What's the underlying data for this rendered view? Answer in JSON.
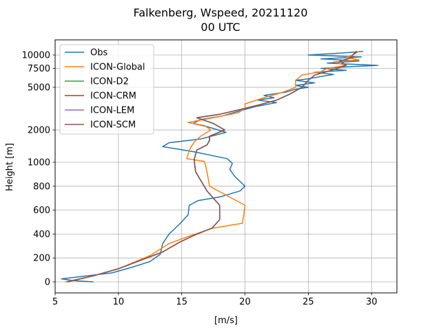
{
  "chart_data": {
    "type": "line",
    "title": "Falkenberg, Wspeed, 20211120",
    "subtitle": "00 UTC",
    "xlabel": "[m/s]",
    "ylabel": "Height [m]",
    "xlim": [
      5,
      32
    ],
    "xticks": [
      5,
      10,
      15,
      20,
      25,
      30
    ],
    "yticks": [
      {
        "label": "0",
        "value": 0
      },
      {
        "label": "200",
        "value": 200
      },
      {
        "label": "400",
        "value": 400
      },
      {
        "label": "600",
        "value": 600
      },
      {
        "label": "800",
        "value": 800
      },
      {
        "label": "1000",
        "value": 1000
      },
      {
        "label": "2000",
        "value": 2000
      },
      {
        "label": "5000",
        "value": 5000
      },
      {
        "label": "7500",
        "value": 7500
      },
      {
        "label": "10000",
        "value": 10000
      }
    ],
    "y_scale": "piecewise: linear 0-1000 m, logarithmic above 1000 m",
    "grid": true,
    "legend_position": "upper-left",
    "series": [
      {
        "name": "Obs",
        "color": "#1f77b4",
        "points": [
          [
            8.0,
            0
          ],
          [
            6.5,
            10
          ],
          [
            5.5,
            25
          ],
          [
            7.5,
            50
          ],
          [
            9.5,
            75
          ],
          [
            11.0,
            120
          ],
          [
            12.5,
            170
          ],
          [
            13.3,
            230
          ],
          [
            13.5,
            320
          ],
          [
            14.0,
            400
          ],
          [
            14.8,
            480
          ],
          [
            15.5,
            560
          ],
          [
            15.6,
            640
          ],
          [
            16.3,
            680
          ],
          [
            18.0,
            710
          ],
          [
            19.6,
            760
          ],
          [
            20.0,
            800
          ],
          [
            19.2,
            880
          ],
          [
            18.8,
            940
          ],
          [
            19.0,
            990
          ],
          [
            18.6,
            1080
          ],
          [
            16.0,
            1250
          ],
          [
            13.5,
            1400
          ],
          [
            14.0,
            1520
          ],
          [
            16.5,
            1650
          ],
          [
            18.5,
            1900
          ],
          [
            17.0,
            2150
          ],
          [
            15.9,
            2300
          ],
          [
            16.5,
            2500
          ],
          [
            18.2,
            2700
          ],
          [
            19.5,
            3000
          ],
          [
            20.8,
            3300
          ],
          [
            22.5,
            3600
          ],
          [
            21.0,
            3800
          ],
          [
            22.3,
            4000
          ],
          [
            21.5,
            4200
          ],
          [
            23.2,
            4500
          ],
          [
            24.0,
            4800
          ],
          [
            25.0,
            5000
          ],
          [
            24.0,
            5200
          ],
          [
            25.5,
            5500
          ],
          [
            24.0,
            5800
          ],
          [
            25.0,
            6000
          ],
          [
            26.0,
            6300
          ],
          [
            27.0,
            6600
          ],
          [
            25.5,
            6900
          ],
          [
            28.0,
            7200
          ],
          [
            26.0,
            7500
          ],
          [
            28.5,
            7800
          ],
          [
            30.5,
            8000
          ],
          [
            26.5,
            8400
          ],
          [
            29.0,
            8800
          ],
          [
            26.0,
            9200
          ],
          [
            29.2,
            9600
          ],
          [
            25.0,
            10000
          ],
          [
            27.5,
            10400
          ],
          [
            29.3,
            10800
          ]
        ]
      },
      {
        "name": "ICON-Global",
        "color": "#ff7f0e",
        "points": [
          [
            5.8,
            0
          ],
          [
            8.0,
            50
          ],
          [
            10.0,
            110
          ],
          [
            12.5,
            220
          ],
          [
            14.0,
            320
          ],
          [
            15.5,
            380
          ],
          [
            17.5,
            450
          ],
          [
            19.8,
            490
          ],
          [
            20.0,
            640
          ],
          [
            17.2,
            800
          ],
          [
            17.0,
            920
          ],
          [
            16.8,
            1020
          ],
          [
            15.4,
            1080
          ],
          [
            15.6,
            1300
          ],
          [
            16.0,
            1550
          ],
          [
            16.5,
            1750
          ],
          [
            17.3,
            2000
          ],
          [
            16.8,
            2200
          ],
          [
            15.5,
            2350
          ],
          [
            17.5,
            2600
          ],
          [
            19.5,
            2900
          ],
          [
            20.0,
            3200
          ],
          [
            20.0,
            3500
          ],
          [
            21.5,
            4000
          ],
          [
            23.0,
            4500
          ],
          [
            24.0,
            5000
          ],
          [
            24.0,
            5800
          ],
          [
            24.5,
            6500
          ],
          [
            26.0,
            7000
          ],
          [
            26.5,
            7500
          ],
          [
            28.0,
            8000
          ],
          [
            27.0,
            8600
          ],
          [
            29.0,
            9000
          ],
          [
            28.0,
            9500
          ],
          [
            28.5,
            10000
          ],
          [
            29.0,
            10800
          ]
        ]
      },
      {
        "name": "ICON-D2",
        "color": "#2ca02c",
        "points": [
          [
            6.0,
            0
          ],
          [
            8.0,
            50
          ],
          [
            10.0,
            110
          ],
          [
            12.0,
            190
          ],
          [
            13.5,
            250
          ],
          [
            14.8,
            330
          ],
          [
            16.0,
            390
          ],
          [
            17.4,
            450
          ],
          [
            18.0,
            520
          ],
          [
            18.0,
            640
          ],
          [
            17.0,
            760
          ],
          [
            16.1,
            920
          ],
          [
            16.0,
            1000
          ],
          [
            16.0,
            1080
          ],
          [
            16.2,
            1300
          ],
          [
            17.0,
            1450
          ],
          [
            17.2,
            1600
          ],
          [
            17.2,
            1750
          ],
          [
            18.4,
            2000
          ],
          [
            17.5,
            2300
          ],
          [
            16.2,
            2600
          ],
          [
            18.0,
            2800
          ],
          [
            19.6,
            3100
          ],
          [
            21.0,
            3400
          ],
          [
            22.5,
            3800
          ],
          [
            23.5,
            4300
          ],
          [
            24.5,
            5000
          ],
          [
            25.0,
            5800
          ],
          [
            25.5,
            6500
          ],
          [
            27.0,
            7300
          ],
          [
            28.0,
            8000
          ],
          [
            27.5,
            8800
          ],
          [
            28.5,
            9500
          ],
          [
            28.5,
            10000
          ],
          [
            28.8,
            10800
          ]
        ]
      },
      {
        "name": "ICON-CRM",
        "color": "#d62728",
        "points": [
          [
            6.0,
            0
          ],
          [
            8.0,
            50
          ],
          [
            10.0,
            110
          ],
          [
            12.0,
            190
          ],
          [
            13.5,
            250
          ],
          [
            14.8,
            330
          ],
          [
            16.0,
            390
          ],
          [
            17.4,
            450
          ],
          [
            18.0,
            520
          ],
          [
            18.0,
            640
          ],
          [
            17.0,
            760
          ],
          [
            16.1,
            920
          ],
          [
            16.0,
            1000
          ],
          [
            16.0,
            1080
          ],
          [
            16.2,
            1300
          ],
          [
            17.0,
            1450
          ],
          [
            17.2,
            1600
          ],
          [
            17.2,
            1750
          ],
          [
            18.4,
            2000
          ],
          [
            17.5,
            2300
          ],
          [
            16.2,
            2600
          ],
          [
            18.0,
            2800
          ],
          [
            19.6,
            3100
          ],
          [
            21.0,
            3400
          ],
          [
            22.5,
            3800
          ],
          [
            23.5,
            4300
          ],
          [
            24.5,
            5000
          ],
          [
            25.0,
            5800
          ],
          [
            25.5,
            6500
          ],
          [
            27.0,
            7300
          ],
          [
            28.0,
            8000
          ],
          [
            27.5,
            8800
          ],
          [
            28.5,
            9500
          ],
          [
            28.5,
            10000
          ],
          [
            28.8,
            10800
          ]
        ]
      },
      {
        "name": "ICON-LEM",
        "color": "#9467bd",
        "points": [
          [
            6.0,
            0
          ],
          [
            8.0,
            50
          ],
          [
            10.0,
            110
          ],
          [
            12.0,
            190
          ],
          [
            13.5,
            250
          ],
          [
            14.8,
            330
          ],
          [
            16.0,
            390
          ],
          [
            17.4,
            450
          ],
          [
            18.0,
            520
          ],
          [
            18.0,
            640
          ],
          [
            17.0,
            760
          ],
          [
            16.1,
            920
          ],
          [
            16.0,
            1000
          ],
          [
            16.0,
            1080
          ],
          [
            16.2,
            1300
          ],
          [
            17.0,
            1450
          ],
          [
            17.2,
            1600
          ],
          [
            17.2,
            1750
          ],
          [
            18.4,
            2000
          ],
          [
            17.5,
            2300
          ],
          [
            16.2,
            2600
          ],
          [
            18.0,
            2800
          ],
          [
            19.6,
            3100
          ],
          [
            21.0,
            3400
          ],
          [
            22.5,
            3800
          ],
          [
            23.5,
            4300
          ],
          [
            24.5,
            5000
          ],
          [
            25.0,
            5800
          ],
          [
            25.5,
            6500
          ],
          [
            27.0,
            7300
          ],
          [
            28.0,
            8000
          ],
          [
            27.5,
            8800
          ],
          [
            28.5,
            9500
          ],
          [
            28.5,
            10000
          ],
          [
            28.8,
            10800
          ]
        ]
      },
      {
        "name": "ICON-SCM",
        "color": "#8c564b",
        "points": [
          [
            6.0,
            0
          ],
          [
            8.0,
            50
          ],
          [
            10.0,
            110
          ],
          [
            12.0,
            190
          ],
          [
            13.5,
            250
          ],
          [
            14.8,
            330
          ],
          [
            16.0,
            390
          ],
          [
            17.4,
            450
          ],
          [
            18.0,
            520
          ],
          [
            18.0,
            640
          ],
          [
            17.0,
            760
          ],
          [
            16.1,
            920
          ],
          [
            16.0,
            1000
          ],
          [
            16.0,
            1080
          ],
          [
            16.2,
            1300
          ],
          [
            17.0,
            1450
          ],
          [
            17.2,
            1600
          ],
          [
            17.2,
            1750
          ],
          [
            18.4,
            2000
          ],
          [
            17.5,
            2300
          ],
          [
            16.2,
            2600
          ],
          [
            18.0,
            2800
          ],
          [
            19.6,
            3100
          ],
          [
            21.0,
            3400
          ],
          [
            22.5,
            3800
          ],
          [
            23.5,
            4300
          ],
          [
            24.5,
            5000
          ],
          [
            25.0,
            5800
          ],
          [
            25.5,
            6500
          ],
          [
            27.0,
            7300
          ],
          [
            28.0,
            8000
          ],
          [
            27.5,
            8800
          ],
          [
            28.5,
            9500
          ],
          [
            28.5,
            10000
          ],
          [
            28.8,
            10800
          ]
        ]
      }
    ]
  }
}
